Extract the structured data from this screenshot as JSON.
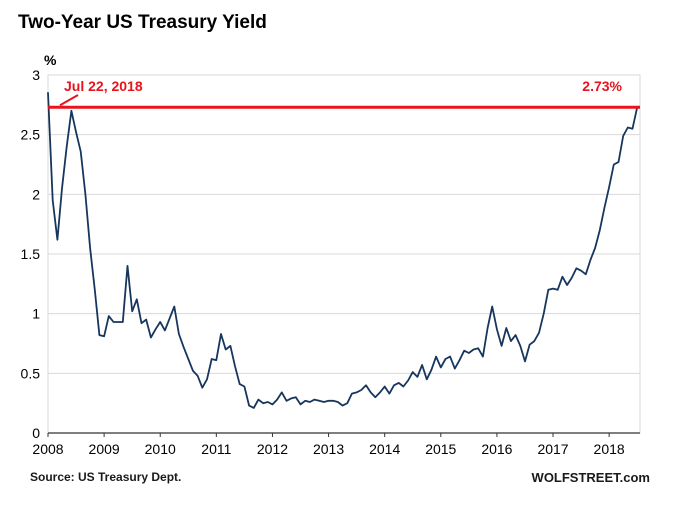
{
  "chart_data": {
    "type": "line",
    "title": "Two-Year US Treasury Yield",
    "ylabel": "%",
    "xlabel": "",
    "ylim": [
      0,
      3
    ],
    "yticks": [
      "0",
      "0.5",
      "1",
      "1.5",
      "2",
      "2.5",
      "3"
    ],
    "ytick_values": [
      0,
      0.5,
      1,
      1.5,
      2,
      2.5,
      3
    ],
    "xticks": [
      "2008",
      "2009",
      "2010",
      "2011",
      "2012",
      "2013",
      "2014",
      "2015",
      "2016",
      "2017",
      "2018"
    ],
    "xtick_values": [
      2008,
      2009,
      2010,
      2011,
      2012,
      2013,
      2014,
      2015,
      2016,
      2017,
      2018
    ],
    "xlim": [
      2008,
      2018.55
    ],
    "grid": true,
    "legend_position": "none",
    "line_color": "#17365d",
    "grid_color": "#d9d9d9",
    "annotation": {
      "date_label": "Jul 22, 2018",
      "value_label": "2.73%",
      "line_value": 2.73,
      "color": "#e8131c"
    },
    "source": "Source: US Treasury Dept.",
    "watermark": "WOLFSTREET.com",
    "series": [
      {
        "name": "Two-Year US Treasury Yield",
        "x_start": 2008,
        "points_per_year": 12,
        "values": [
          2.85,
          1.95,
          1.62,
          2.05,
          2.4,
          2.7,
          2.52,
          2.36,
          2.0,
          1.55,
          1.2,
          0.82,
          0.81,
          0.98,
          0.93,
          0.93,
          0.93,
          1.4,
          1.02,
          1.12,
          0.92,
          0.95,
          0.8,
          0.87,
          0.93,
          0.86,
          0.96,
          1.06,
          0.83,
          0.72,
          0.62,
          0.52,
          0.48,
          0.38,
          0.45,
          0.62,
          0.61,
          0.83,
          0.7,
          0.73,
          0.56,
          0.41,
          0.39,
          0.23,
          0.21,
          0.28,
          0.25,
          0.26,
          0.24,
          0.28,
          0.34,
          0.27,
          0.29,
          0.3,
          0.24,
          0.27,
          0.26,
          0.28,
          0.27,
          0.26,
          0.27,
          0.27,
          0.26,
          0.23,
          0.25,
          0.33,
          0.34,
          0.36,
          0.4,
          0.34,
          0.3,
          0.34,
          0.39,
          0.33,
          0.4,
          0.42,
          0.39,
          0.44,
          0.51,
          0.47,
          0.57,
          0.45,
          0.53,
          0.64,
          0.55,
          0.62,
          0.64,
          0.54,
          0.61,
          0.69,
          0.67,
          0.7,
          0.71,
          0.64,
          0.88,
          1.06,
          0.87,
          0.73,
          0.88,
          0.77,
          0.82,
          0.73,
          0.6,
          0.74,
          0.77,
          0.84,
          1.0,
          1.2,
          1.21,
          1.2,
          1.31,
          1.24,
          1.3,
          1.38,
          1.36,
          1.33,
          1.45,
          1.55,
          1.7,
          1.89,
          2.06,
          2.25,
          2.27,
          2.49,
          2.56,
          2.55,
          2.73
        ]
      }
    ]
  }
}
